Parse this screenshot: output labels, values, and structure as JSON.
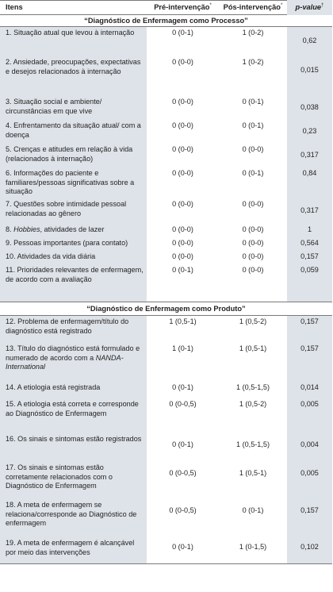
{
  "header": {
    "col_item": "Itens",
    "col_pre": "Pré-intervenção",
    "col_pre_mark": "*",
    "col_pos": "Pós-intervenção",
    "col_pos_mark": "*",
    "col_p": "p-value",
    "col_p_mark": "†"
  },
  "section1": {
    "title": "“Diagnóstico de Enfermagem como Processo”"
  },
  "section2": {
    "title": "“Diagnóstico de Enfermagem como Produto”"
  },
  "rows": [
    {
      "item": "1. Situação atual que levou à internação",
      "pre": "0 (0-1)",
      "pos": "1 (0-2)",
      "p": "0,62"
    },
    {
      "item": "2. Ansiedade, preocupações, expectativas e desejos relacionados à internação",
      "pre": "0 (0-0)",
      "pos": "1 (0-2)",
      "p": "0,015"
    },
    {
      "item": "3. Situação social e ambiente/ circunstâncias em que vive",
      "pre": "0 (0-0)",
      "pos": "0 (0-1)",
      "p": "0,038"
    },
    {
      "item": "4. Enfrentamento da situação atual/ com a doença",
      "pre": "0 (0-0)",
      "pos": "0 (0-1)",
      "p": "0,23"
    },
    {
      "item": "5. Crenças e atitudes em relação à vida (relacionados à internação)",
      "pre": "0 (0-0)",
      "pos": "0 (0-0)",
      "p": "0,317"
    },
    {
      "item": "6. Informações do paciente e familiares/pessoas significativas sobre a situação",
      "pre": "0 (0-0)",
      "pos": "0 (0-1)",
      "p": "0,84"
    },
    {
      "item": "7. Questões sobre intimidade pessoal relacionadas ao gênero",
      "pre": "0 (0-0)",
      "pos": "0 (0-0)",
      "p": "0,317"
    },
    {
      "item_italic": "Hobbies",
      "item_prefix": "8. ",
      "item_suffix": ", atividades de lazer",
      "pre": "0 (0-0)",
      "pos": "0 (0-0)",
      "p": "1"
    },
    {
      "item": "9. Pessoas importantes (para contato)",
      "pre": "0 (0-0)",
      "pos": "0 (0-0)",
      "p": "0,564"
    },
    {
      "item": "10. Atividades da vida diária",
      "pre": "0 (0-0)",
      "pos": "0 (0-0)",
      "p": "0,157"
    },
    {
      "item": "11. Prioridades relevantes de enfermagem, de acordo com a avaliação",
      "pre": "0 (0-1)",
      "pos": "0 (0-0)",
      "p": "0,059"
    },
    {
      "item": "12. Problema de enfermagem/título do diagnóstico está registrado",
      "pre": "1 (0,5-1)",
      "pos": "1 (0,5-2)",
      "p": "0,157"
    },
    {
      "item_prefix": "13. Título do diagnóstico está formulado e numerado de acordo com a ",
      "item_italic": "NANDA-International",
      "item_suffix": "",
      "pre": "1 (0-1)",
      "pos": "1 (0,5-1)",
      "p": "0,157"
    },
    {
      "item": "14. A etiologia está registrada",
      "pre": "0 (0-1)",
      "pos": "1 (0,5-1,5)",
      "p": "0,014"
    },
    {
      "item": "15. A etiologia está correta e corresponde ao Diagnóstico de Enfermagem",
      "pre": "0 (0-0,5)",
      "pos": "1 (0,5-2)",
      "p": "0,005"
    },
    {
      "item": "16. Os sinais e sintomas estão registrados",
      "pre": "0 (0-1)",
      "pos": "1 (0,5-1,5)",
      "p": "0,004"
    },
    {
      "item": "17. Os sinais e sintomas estão corretamente relacionados com o Diagnóstico de Enfermagem",
      "pre": "0 (0-0,5)",
      "pos": "1 (0,5-1)",
      "p": "0,005"
    },
    {
      "item": "18. A meta de enfermagem se relaciona/corresponde ao Diagnóstico de enfermagem",
      "pre": "0 (0-0,5)",
      "pos": "0 (0-1)",
      "p": "0,157"
    },
    {
      "item": "19. A meta de enfermagem é alcançável por meio das intervenções",
      "pre": "0 (0-1)",
      "pos": "1 (0-1,5)",
      "p": "0,102"
    }
  ]
}
